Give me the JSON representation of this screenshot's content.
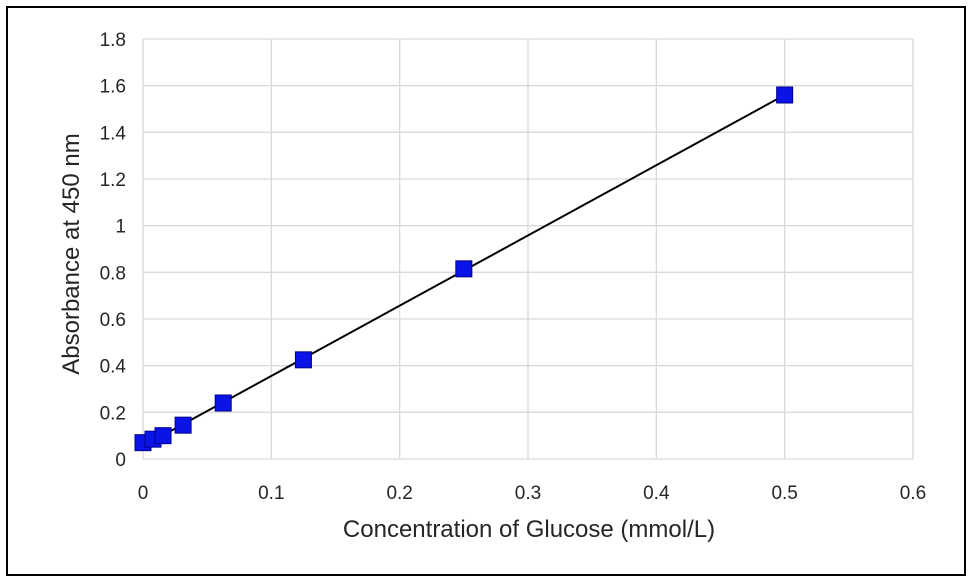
{
  "chart_data": {
    "type": "scatter",
    "title": "",
    "xlabel": "Concentration of Glucose (mmol/L)",
    "ylabel": "Absorbance at 450 nm",
    "xlim": [
      0,
      0.6
    ],
    "ylim": [
      0,
      1.8
    ],
    "x_ticks": [
      "0",
      "0.1",
      "0.2",
      "0.3",
      "0.4",
      "0.5",
      "0.6"
    ],
    "y_ticks": [
      "0",
      "0.2",
      "0.4",
      "0.6",
      "0.8",
      "1",
      "1.2",
      "1.4",
      "1.6",
      "1.8"
    ],
    "x_tick_values": [
      0,
      0.1,
      0.2,
      0.3,
      0.4,
      0.5,
      0.6
    ],
    "y_tick_values": [
      0,
      0.2,
      0.4,
      0.6,
      0.8,
      1.0,
      1.2,
      1.4,
      1.6,
      1.8
    ],
    "grid": true,
    "legend": "none",
    "marker": "square",
    "colors": {
      "marker_fill": "#0a14e6",
      "marker_stroke": "#00008b",
      "trendline": "#000000",
      "grid": "#d9d9d9"
    },
    "points": [
      {
        "x": 0.0,
        "y": 0.07
      },
      {
        "x": 0.0078,
        "y": 0.085
      },
      {
        "x": 0.0156,
        "y": 0.1
      },
      {
        "x": 0.03125,
        "y": 0.145
      },
      {
        "x": 0.0625,
        "y": 0.24
      },
      {
        "x": 0.125,
        "y": 0.425
      },
      {
        "x": 0.25,
        "y": 0.815
      },
      {
        "x": 0.5,
        "y": 1.56
      }
    ],
    "trendline": {
      "type": "linear",
      "from": {
        "x": 0.0,
        "y": 0.055
      },
      "to": {
        "x": 0.5,
        "y": 1.56
      }
    }
  }
}
